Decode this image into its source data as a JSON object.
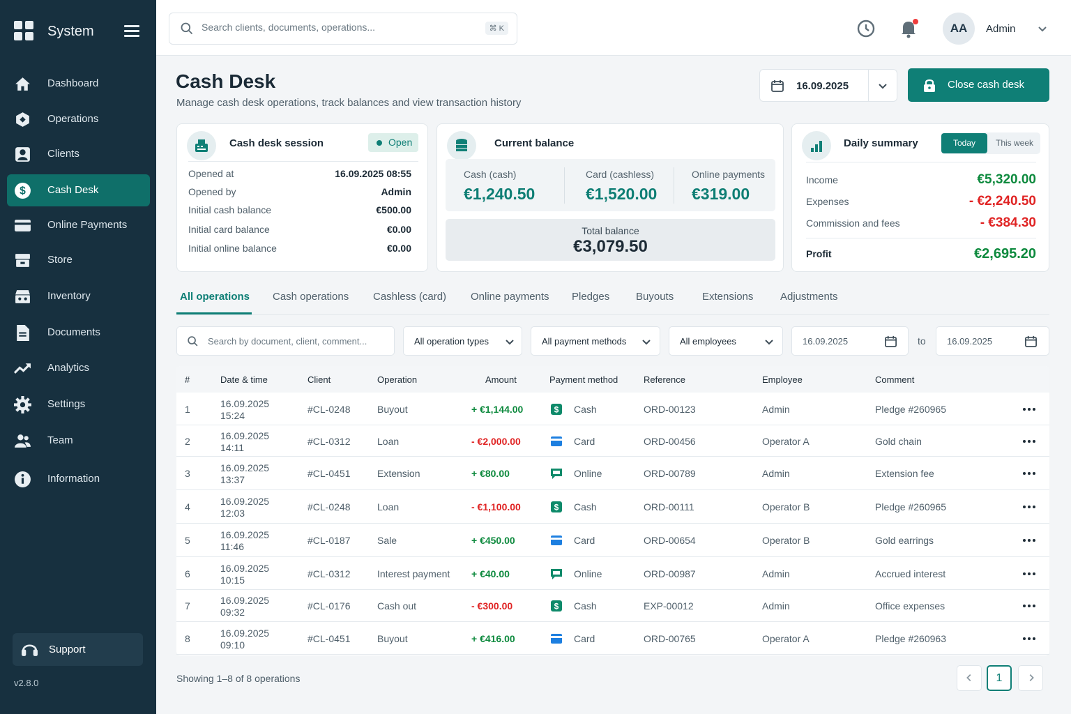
{
  "sidebar": {
    "brand": "System",
    "items": [
      {
        "label": "Dashboard",
        "icon": "home-icon"
      },
      {
        "label": "Operations",
        "icon": "hexagon-icon"
      },
      {
        "label": "Clients",
        "icon": "user-icon"
      },
      {
        "label": "Cash Desk",
        "icon": "dollar-icon",
        "active": true
      },
      {
        "label": "Online Payments",
        "icon": "credit-card-icon"
      },
      {
        "label": "Store",
        "icon": "store-icon"
      },
      {
        "label": "Inventory",
        "icon": "inventory-icon"
      },
      {
        "label": "Documents",
        "icon": "document-icon"
      },
      {
        "label": "Analytics",
        "icon": "trend-icon"
      },
      {
        "label": "Settings",
        "icon": "gear-icon"
      },
      {
        "label": "Team",
        "icon": "team-icon"
      },
      {
        "label": "Information",
        "icon": "info-icon"
      }
    ],
    "support": "Support",
    "version": "v2.8.0"
  },
  "topbar": {
    "search_placeholder": "Search clients, documents, operations...",
    "shortcut": "⌘ K",
    "avatar_initials": "AA",
    "user_name": "Admin"
  },
  "page": {
    "title": "Cash Desk",
    "subtitle": "Manage cash desk operations, track balances and view transaction history",
    "date": "16.09.2025",
    "close_button": "Close cash desk"
  },
  "session": {
    "title": "Cash desk session",
    "status": "Open",
    "rows": [
      {
        "k": "Opened at",
        "v": "16.09.2025 08:55"
      },
      {
        "k": "Opened by",
        "v": "Admin"
      },
      {
        "k": "Initial cash balance",
        "v": "€500.00"
      },
      {
        "k": "Initial card balance",
        "v": "€0.00"
      },
      {
        "k": "Initial online balance",
        "v": "€0.00"
      }
    ]
  },
  "balance": {
    "title": "Current balance",
    "cash_label": "Cash (cash)",
    "cash_value": "€1,240.50",
    "card_label": "Card (cashless)",
    "card_value": "€1,520.00",
    "online_label": "Online payments",
    "online_value": "€319.00",
    "total_label": "Total balance",
    "total_value": "€3,079.50"
  },
  "summary": {
    "title": "Daily summary",
    "today": "Today",
    "week": "This week",
    "income_label": "Income",
    "income_value": "€5,320.00",
    "expenses_label": "Expenses",
    "expenses_value": "- €2,240.50",
    "fees_label": "Commission and fees",
    "fees_value": "- €384.30",
    "profit_label": "Profit",
    "profit_value": "€2,695.20"
  },
  "tabs": [
    "All operations",
    "Cash operations",
    "Cashless (card)",
    "Online payments",
    "Pledges",
    "Buyouts",
    "Extensions",
    "Adjustments"
  ],
  "filters": {
    "search_placeholder": "Search by document, client, comment...",
    "type": "All operation types",
    "method": "All payment methods",
    "employee": "All employees",
    "date_from": "16.09.2025",
    "to": "to",
    "date_to": "16.09.2025"
  },
  "table": {
    "headers": [
      "#",
      "Date & time",
      "Client",
      "Operation",
      "Amount",
      "Payment method",
      "Reference",
      "Employee",
      "Comment"
    ],
    "rows": [
      {
        "n": "1",
        "date": "16.09.2025",
        "time": "15:24",
        "client": "#CL-0248",
        "op": "Buyout",
        "amount": "+ €1,144.00",
        "sign": "pos",
        "method": "Cash",
        "ref": "ORD-00123",
        "emp": "Admin",
        "comment": "Pledge #260965"
      },
      {
        "n": "2",
        "date": "16.09.2025",
        "time": "14:11",
        "client": "#CL-0312",
        "op": "Loan",
        "amount": "- €2,000.00",
        "sign": "neg",
        "method": "Card",
        "ref": "ORD-00456",
        "emp": "Operator A",
        "comment": "Gold chain"
      },
      {
        "n": "3",
        "date": "16.09.2025",
        "time": "13:37",
        "client": "#CL-0451",
        "op": "Extension",
        "amount": "+ €80.00",
        "sign": "pos",
        "method": "Online",
        "ref": "ORD-00789",
        "emp": "Admin",
        "comment": "Extension fee"
      },
      {
        "n": "4",
        "date": "16.09.2025",
        "time": "12:03",
        "client": "#CL-0248",
        "op": "Loan",
        "amount": "- €1,100.00",
        "sign": "neg",
        "method": "Cash",
        "ref": "ORD-00111",
        "emp": "Operator B",
        "comment": "Pledge #260965"
      },
      {
        "n": "5",
        "date": "16.09.2025",
        "time": "11:46",
        "client": "#CL-0187",
        "op": "Sale",
        "amount": "+ €450.00",
        "sign": "pos",
        "method": "Card",
        "ref": "ORD-00654",
        "emp": "Operator B",
        "comment": "Gold earrings"
      },
      {
        "n": "6",
        "date": "16.09.2025",
        "time": "10:15",
        "client": "#CL-0312",
        "op": "Interest payment",
        "amount": "+ €40.00",
        "sign": "pos",
        "method": "Online",
        "ref": "ORD-00987",
        "emp": "Admin",
        "comment": "Accrued interest"
      },
      {
        "n": "7",
        "date": "16.09.2025",
        "time": "09:32",
        "client": "#CL-0176",
        "op": "Cash out",
        "amount": "- €300.00",
        "sign": "neg",
        "method": "Cash",
        "ref": "EXP-00012",
        "emp": "Admin",
        "comment": "Office expenses"
      },
      {
        "n": "8",
        "date": "16.09.2025",
        "time": "09:10",
        "client": "#CL-0451",
        "op": "Buyout",
        "amount": "+ €416.00",
        "sign": "pos",
        "method": "Card",
        "ref": "ORD-00765",
        "emp": "Operator A",
        "comment": "Pledge #260963"
      }
    ]
  },
  "footer": {
    "showing": "Showing 1–8 of 8 operations",
    "page": "1"
  },
  "colors": {
    "accent": "#0f7f76",
    "sidebar": "#17303f",
    "positive": "#0e8a3e",
    "negative": "#e02424"
  }
}
